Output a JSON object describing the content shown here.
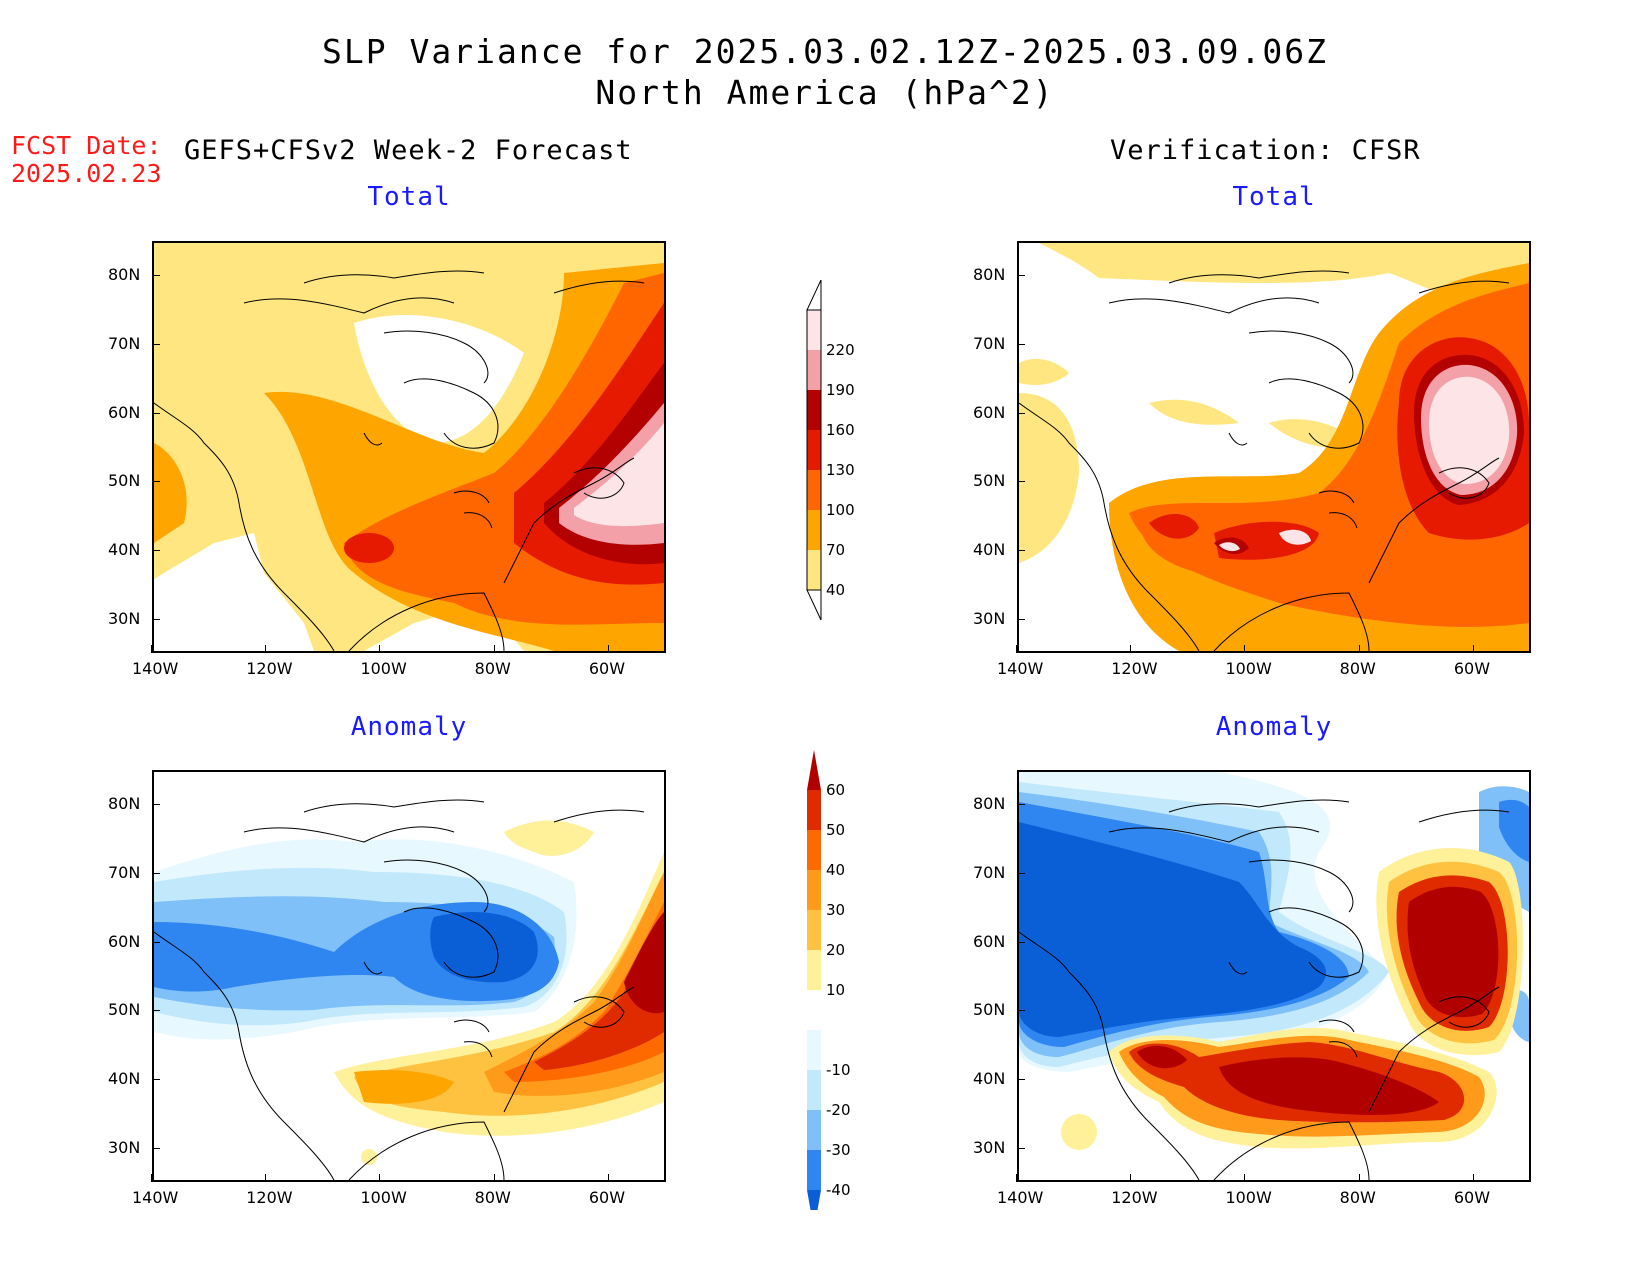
{
  "title": {
    "line1": "SLP Variance for 2025.03.02.12Z-2025.03.09.06Z",
    "line2": "North America (hPa^2)"
  },
  "fcst": {
    "label": "FCST Date:",
    "date": "2025.02.23"
  },
  "headers": {
    "left": "GEFS+CFSv2 Week-2 Forecast",
    "right": "Verification: CFSR"
  },
  "panels": [
    {
      "id": "fcst-total",
      "title": "Total"
    },
    {
      "id": "verif-total",
      "title": "Total"
    },
    {
      "id": "fcst-anomaly",
      "title": "Anomaly"
    },
    {
      "id": "verif-anomaly",
      "title": "Anomaly"
    }
  ],
  "axes": {
    "lon_labels": [
      "140W",
      "120W",
      "100W",
      "80W",
      "60W"
    ],
    "lat_labels": [
      "80N",
      "70N",
      "60N",
      "50N",
      "40N",
      "30N"
    ],
    "lon_range": [
      -140,
      -50
    ],
    "lat_range": [
      25,
      85
    ]
  },
  "colorbars": {
    "total": {
      "levels": [
        "40",
        "70",
        "100",
        "130",
        "160",
        "190",
        "220"
      ],
      "colors": [
        "#ffe680",
        "#ffa500",
        "#ff6600",
        "#e61a00",
        "#b30000",
        "#f4a0a8",
        "#fde4e6"
      ]
    },
    "anomaly": {
      "levels": [
        "-40",
        "-30",
        "-20",
        "-10",
        "10",
        "20",
        "30",
        "40",
        "50",
        "60"
      ],
      "colors": [
        "#0a5fd6",
        "#2f86f0",
        "#7ec0f7",
        "#c2e8fb",
        "#e8f8ff",
        "#ffffff",
        "#fff09a",
        "#ffc240",
        "#ff9a1a",
        "#ff6a00",
        "#e02a00",
        "#b00000"
      ]
    }
  }
}
